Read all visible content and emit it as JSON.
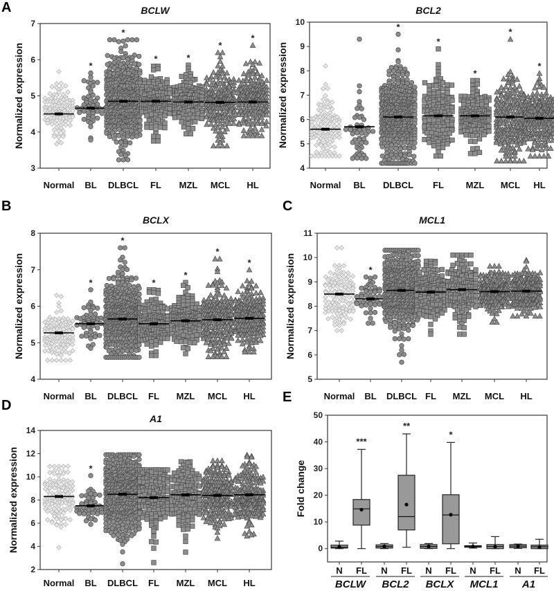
{
  "figure": {
    "panel_letters": [
      "A",
      "B",
      "C",
      "D",
      "E"
    ]
  },
  "colors": {
    "marker_fill": "#8c8c8c",
    "marker_stroke": "#4a4a4a",
    "normal_fill": "#e6e6e6",
    "normal_stroke": "#b0b0b0",
    "box_fill": "#999999"
  },
  "chart_data": [
    {
      "panel": "A",
      "type": "scatter",
      "title": "BCLW",
      "ylabel": "Normalized expression",
      "ylim": [
        3,
        7
      ],
      "yticks": [
        3,
        4,
        5,
        6,
        7
      ],
      "categories": [
        "Normal",
        "BL",
        "DLBCL",
        "FL",
        "MZL",
        "MCL",
        "HL"
      ],
      "markers": [
        "diamond",
        "circle",
        "circle",
        "square",
        "square",
        "triangle",
        "triangle"
      ],
      "groups": [
        {
          "mean": 4.5,
          "min": 3.67,
          "max": 5.67,
          "n": 120,
          "sig": ""
        },
        {
          "mean": 4.66,
          "min": 3.78,
          "max": 5.63,
          "n": 50,
          "sig": "*"
        },
        {
          "mean": 4.85,
          "min": 3.23,
          "max": 6.55,
          "n": 480,
          "sig": "*"
        },
        {
          "mean": 4.85,
          "min": 3.75,
          "max": 5.82,
          "n": 150,
          "sig": "*"
        },
        {
          "mean": 4.83,
          "min": 3.95,
          "max": 5.85,
          "n": 150,
          "sig": "*"
        },
        {
          "mean": 4.82,
          "min": 3.62,
          "max": 6.2,
          "n": 200,
          "sig": "*"
        },
        {
          "mean": 4.83,
          "min": 3.9,
          "max": 6.4,
          "n": 200,
          "sig": "*"
        }
      ]
    },
    {
      "panel": "A",
      "type": "scatter",
      "title": "BCL2",
      "ylabel": "Normalized expression",
      "ylim": [
        4,
        10
      ],
      "yticks": [
        4,
        5,
        6,
        7,
        8,
        9,
        10
      ],
      "categories": [
        "Normal",
        "BL",
        "DLBCL",
        "FL",
        "MZL",
        "MCL",
        "HL"
      ],
      "markers": [
        "diamond",
        "circle",
        "circle",
        "square",
        "square",
        "triangle",
        "triangle"
      ],
      "groups": [
        {
          "mean": 5.6,
          "min": 4.5,
          "max": 8.2,
          "n": 120,
          "sig": ""
        },
        {
          "mean": 5.7,
          "min": 4.4,
          "max": 9.3,
          "n": 50,
          "sig": ""
        },
        {
          "mean": 6.1,
          "min": 4.2,
          "max": 9.5,
          "n": 480,
          "sig": "*"
        },
        {
          "mean": 6.15,
          "min": 4.5,
          "max": 8.9,
          "n": 150,
          "sig": "*"
        },
        {
          "mean": 6.15,
          "min": 4.6,
          "max": 7.6,
          "n": 150,
          "sig": "*"
        },
        {
          "mean": 6.1,
          "min": 4.3,
          "max": 9.3,
          "n": 200,
          "sig": "*"
        },
        {
          "mean": 6.05,
          "min": 4.5,
          "max": 7.9,
          "n": 200,
          "sig": "*"
        }
      ]
    },
    {
      "panel": "B",
      "type": "scatter",
      "title": "BCLX",
      "ylabel": "Normalized expression",
      "ylim": [
        4,
        8
      ],
      "yticks": [
        4,
        5,
        6,
        7,
        8
      ],
      "categories": [
        "Normal",
        "BL",
        "DLBCL",
        "FL",
        "MZL",
        "MCL",
        "HL"
      ],
      "markers": [
        "diamond",
        "circle",
        "circle",
        "square",
        "square",
        "triangle",
        "triangle"
      ],
      "groups": [
        {
          "mean": 5.27,
          "min": 4.52,
          "max": 6.3,
          "n": 120,
          "sig": ""
        },
        {
          "mean": 5.52,
          "min": 4.85,
          "max": 6.45,
          "n": 50,
          "sig": "*"
        },
        {
          "mean": 5.65,
          "min": 4.6,
          "max": 7.6,
          "n": 480,
          "sig": "*"
        },
        {
          "mean": 5.52,
          "min": 4.65,
          "max": 6.45,
          "n": 150,
          "sig": "*"
        },
        {
          "mean": 5.6,
          "min": 4.7,
          "max": 6.65,
          "n": 150,
          "sig": "*"
        },
        {
          "mean": 5.63,
          "min": 4.62,
          "max": 7.3,
          "n": 200,
          "sig": "*"
        },
        {
          "mean": 5.67,
          "min": 4.75,
          "max": 7.0,
          "n": 200,
          "sig": "*"
        }
      ]
    },
    {
      "panel": "C",
      "type": "scatter",
      "title": "MCL1",
      "ylabel": "Normalized expression",
      "ylim": [
        5,
        11
      ],
      "yticks": [
        5,
        6,
        7,
        8,
        9,
        10,
        11
      ],
      "categories": [
        "Normal",
        "BL",
        "DLBCL",
        "FL",
        "MZL",
        "MCL",
        "HL"
      ],
      "markers": [
        "diamond",
        "circle",
        "circle",
        "square",
        "square",
        "triangle",
        "triangle"
      ],
      "groups": [
        {
          "mean": 8.5,
          "min": 7.0,
          "max": 10.4,
          "n": 120,
          "sig": ""
        },
        {
          "mean": 8.3,
          "min": 7.3,
          "max": 9.2,
          "n": 50,
          "sig": "*"
        },
        {
          "mean": 8.65,
          "min": 5.7,
          "max": 10.3,
          "n": 480,
          "sig": ""
        },
        {
          "mean": 8.58,
          "min": 6.85,
          "max": 9.85,
          "n": 150,
          "sig": ""
        },
        {
          "mean": 8.68,
          "min": 6.85,
          "max": 10.1,
          "n": 150,
          "sig": ""
        },
        {
          "mean": 8.6,
          "min": 7.35,
          "max": 9.65,
          "n": 200,
          "sig": ""
        },
        {
          "mean": 8.62,
          "min": 7.6,
          "max": 9.9,
          "n": 200,
          "sig": ""
        }
      ]
    },
    {
      "panel": "D",
      "type": "scatter",
      "title": "A1",
      "ylabel": "Normalized expression",
      "ylim": [
        2,
        14
      ],
      "yticks": [
        2,
        4,
        6,
        8,
        10,
        12,
        14
      ],
      "categories": [
        "Normal",
        "BL",
        "DLBCL",
        "FL",
        "MZL",
        "MCL",
        "HL"
      ],
      "markers": [
        "diamond",
        "circle",
        "circle",
        "square",
        "square",
        "triangle",
        "triangle"
      ],
      "groups": [
        {
          "mean": 8.3,
          "min": 3.9,
          "max": 10.9,
          "n": 120,
          "sig": ""
        },
        {
          "mean": 7.5,
          "min": 5.9,
          "max": 10.1,
          "n": 50,
          "sig": "*"
        },
        {
          "mean": 8.5,
          "min": 2.5,
          "max": 11.9,
          "n": 480,
          "sig": ""
        },
        {
          "mean": 8.2,
          "min": 2.6,
          "max": 10.6,
          "n": 150,
          "sig": ""
        },
        {
          "mean": 8.45,
          "min": 3.5,
          "max": 11.3,
          "n": 150,
          "sig": ""
        },
        {
          "mean": 8.4,
          "min": 4.7,
          "max": 11.4,
          "n": 200,
          "sig": ""
        },
        {
          "mean": 8.45,
          "min": 4.9,
          "max": 11.9,
          "n": 200,
          "sig": ""
        }
      ]
    },
    {
      "panel": "E",
      "type": "box",
      "title": "",
      "ylabel": "Fold change",
      "ylim": [
        -5,
        50
      ],
      "yticks": [
        0,
        10,
        20,
        30,
        40,
        50
      ],
      "genes": [
        "BCLW",
        "BCL2",
        "BCLX",
        "MCL1",
        "A1"
      ],
      "categories": [
        "N",
        "FL",
        "N",
        "FL",
        "N",
        "FL",
        "N",
        "FL",
        "N",
        "FL"
      ],
      "boxes": [
        {
          "min": 0,
          "q1": 0.2,
          "median": 0.5,
          "q3": 1.3,
          "max": 2.8,
          "mean": 0.6,
          "sig": ""
        },
        {
          "min": 0,
          "q1": 8.8,
          "median": 14.9,
          "q3": 18.4,
          "max": 37.2,
          "mean": 14.6,
          "sig": "***"
        },
        {
          "min": 0,
          "q1": 0.2,
          "median": 0.8,
          "q3": 1.4,
          "max": 1.9,
          "mean": 0.8,
          "sig": ""
        },
        {
          "min": 0.5,
          "q1": 7.0,
          "median": 12.0,
          "q3": 27.5,
          "max": 43.0,
          "mean": 16.5,
          "sig": "**"
        },
        {
          "min": 0,
          "q1": 0.1,
          "median": 0.8,
          "q3": 1.5,
          "max": 1.9,
          "mean": 0.8,
          "sig": ""
        },
        {
          "min": 0,
          "q1": 1.8,
          "median": 12.6,
          "q3": 20.2,
          "max": 39.8,
          "mean": 12.7,
          "sig": "*"
        },
        {
          "min": 0.2,
          "q1": 0.5,
          "median": 0.8,
          "q3": 1.1,
          "max": 2.1,
          "mean": 0.8,
          "sig": ""
        },
        {
          "min": 0,
          "q1": 0,
          "median": 0.8,
          "q3": 1.5,
          "max": 4.5,
          "mean": 0.7,
          "sig": ""
        },
        {
          "min": 0.1,
          "q1": 0.3,
          "median": 0.9,
          "q3": 1.5,
          "max": 1.7,
          "mean": 0.9,
          "sig": ""
        },
        {
          "min": 0,
          "q1": 0,
          "median": 0.7,
          "q3": 1.3,
          "max": 3.5,
          "mean": 0.5,
          "sig": ""
        }
      ]
    }
  ]
}
